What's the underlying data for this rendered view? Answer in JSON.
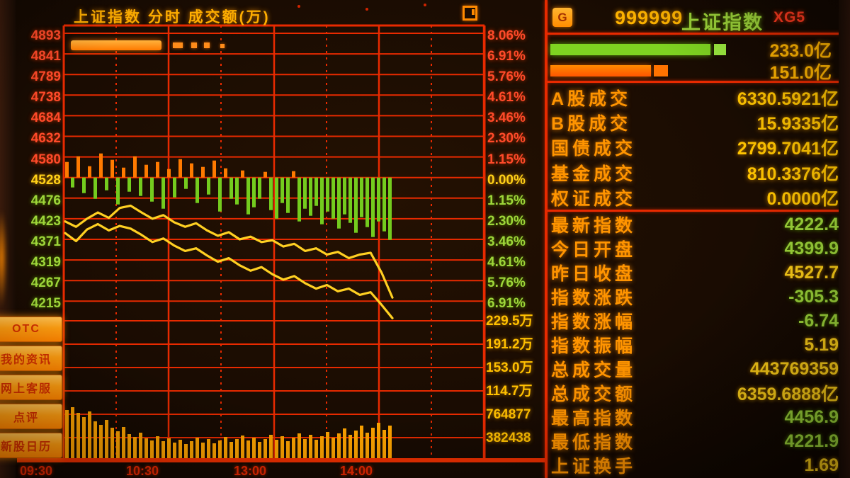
{
  "chart_panel": {
    "title": "上证指数 分时 成交额(万)"
  },
  "sidebar": {
    "items": [
      "OTC",
      "我的资讯",
      "网上客服",
      "点评",
      "新股日历"
    ]
  },
  "quote_panel": {
    "logo_glyph": "G",
    "stock_code": "999999",
    "stock_name": "上证指数",
    "tag": "XG5",
    "advance_bar_value": "233.0亿",
    "decline_bar_value": "151.0亿",
    "turnover_rows": [
      {
        "label": "A股成交",
        "value": "6330.5921",
        "unit": "亿"
      },
      {
        "label": "B股成交",
        "value": "15.9335",
        "unit": "亿"
      },
      {
        "label": "国债成交",
        "value": "2799.7041",
        "unit": "亿"
      },
      {
        "label": "基金成交",
        "value": "810.3376",
        "unit": "亿"
      },
      {
        "label": "权证成交",
        "value": "0.0000",
        "unit": "亿"
      }
    ],
    "index_rows": [
      {
        "label": "最新指数",
        "value": "4222.4",
        "color": "c-green"
      },
      {
        "label": "今日开盘",
        "value": "4399.9",
        "color": "c-green"
      },
      {
        "label": "昨日收盘",
        "value": "4527.7",
        "color": "c-yellow"
      },
      {
        "label": "指数涨跌",
        "value": "-305.3",
        "color": "c-green"
      },
      {
        "label": "指数涨幅",
        "value": "-6.74",
        "color": "c-green"
      },
      {
        "label": "指数振幅",
        "value": "5.19",
        "color": "c-yellow"
      },
      {
        "label": "总成交量",
        "value": "443769359",
        "color": "c-yellow"
      },
      {
        "label": "总成交额",
        "value": "6359.6888亿",
        "color": "c-yellow"
      },
      {
        "label": "最高指数",
        "value": "4456.9",
        "color": "c-green"
      },
      {
        "label": "最低指数",
        "value": "4221.9",
        "color": "c-green"
      },
      {
        "label": "上证换手",
        "value": "1.69",
        "color": "c-yellow"
      }
    ]
  },
  "chart_data": {
    "type": "line",
    "title": "上证指数 分时 成交额(万)",
    "prev_close_index": 4527.7,
    "price_ticks": [
      {
        "label": "4893",
        "color": "c-red"
      },
      {
        "label": "4841",
        "color": "c-red"
      },
      {
        "label": "4789",
        "color": "c-red"
      },
      {
        "label": "4738",
        "color": "c-red"
      },
      {
        "label": "4684",
        "color": "c-red"
      },
      {
        "label": "4632",
        "color": "c-red"
      },
      {
        "label": "4580",
        "color": "c-red"
      },
      {
        "label": "4528",
        "color": "c-yellow"
      },
      {
        "label": "4476",
        "color": "c-green"
      },
      {
        "label": "4423",
        "color": "c-green"
      },
      {
        "label": "4371",
        "color": "c-green"
      },
      {
        "label": "4319",
        "color": "c-green"
      },
      {
        "label": "4267",
        "color": "c-green"
      },
      {
        "label": "4215",
        "color": "c-green"
      }
    ],
    "pct_ticks": [
      {
        "label": "8.06%",
        "color": "c-red"
      },
      {
        "label": "6.91%",
        "color": "c-red"
      },
      {
        "label": "5.76%",
        "color": "c-red"
      },
      {
        "label": "4.61%",
        "color": "c-red"
      },
      {
        "label": "3.46%",
        "color": "c-red"
      },
      {
        "label": "2.30%",
        "color": "c-red"
      },
      {
        "label": "1.15%",
        "color": "c-red"
      },
      {
        "label": "0.00%",
        "color": "c-yellow"
      },
      {
        "label": "1.15%",
        "color": "c-green"
      },
      {
        "label": "2.30%",
        "color": "c-green"
      },
      {
        "label": "3.46%",
        "color": "c-green"
      },
      {
        "label": "4.61%",
        "color": "c-green"
      },
      {
        "label": "5.76%",
        "color": "c-green"
      },
      {
        "label": "6.91%",
        "color": "c-green"
      }
    ],
    "vol_ticks": [
      "229.5万",
      "191.2万",
      "153.0万",
      "114.7万",
      "764877",
      "382438"
    ],
    "time_ticks": [
      "09:30",
      "10:30",
      "13:00",
      "14:00"
    ],
    "series": [
      {
        "name": "index_pct_change",
        "values": [
          -2.45,
          -2.75,
          -2.3,
          -1.95,
          -2.25,
          -1.7,
          -1.57,
          -1.95,
          -2.3,
          -2.1,
          -2.5,
          -2.75,
          -2.55,
          -2.95,
          -3.25,
          -3.05,
          -3.45,
          -3.3,
          -3.6,
          -3.5,
          -3.85,
          -3.7,
          -4.1,
          -3.95,
          -4.3,
          -4.15,
          -4.5,
          -4.3,
          -4.2,
          -5.3,
          -6.7
        ]
      },
      {
        "name": "average_pct_change",
        "values": [
          -3.1,
          -3.55,
          -2.9,
          -2.6,
          -2.95,
          -2.7,
          -2.85,
          -3.2,
          -3.6,
          -3.4,
          -3.8,
          -4.1,
          -3.95,
          -4.35,
          -4.7,
          -4.5,
          -4.9,
          -5.2,
          -5.0,
          -5.4,
          -5.7,
          -5.5,
          -5.9,
          -6.2,
          -6.0,
          -6.35,
          -6.2,
          -6.55,
          -6.4,
          -7.1,
          -7.85
        ]
      }
    ],
    "minute_volume_strip": [
      22,
      -14,
      30,
      -22,
      16,
      -30,
      34,
      -18,
      25,
      -38,
      14,
      -20,
      30,
      -26,
      18,
      -34,
      22,
      -44,
      12,
      -28,
      26,
      -16,
      20,
      -36,
      15,
      -24,
      24,
      -48,
      13,
      -30,
      -38,
      10,
      -52,
      -42,
      -30,
      8,
      -46,
      -58,
      -36,
      -50,
      9,
      -62,
      -44,
      -54,
      -40,
      -66,
      -48,
      -58,
      -72,
      -52,
      -64,
      -78,
      -56,
      -70,
      -84,
      -62,
      -76,
      -88
    ],
    "volume_bars": [
      68,
      72,
      64,
      58,
      66,
      52,
      47,
      54,
      43,
      38,
      44,
      34,
      30,
      36,
      28,
      25,
      31,
      24,
      28,
      22,
      26,
      20,
      24,
      29,
      22,
      27,
      21,
      25,
      30,
      23,
      27,
      32,
      25,
      29,
      23,
      27,
      33,
      26,
      31,
      24,
      29,
      35,
      27,
      33,
      26,
      31,
      37,
      29,
      35,
      42,
      33,
      39,
      46,
      36,
      43,
      50,
      40,
      46
    ],
    "grid": true,
    "axis_colors": {
      "grid_red": "#e82a00",
      "line_yellow": "#ffd022",
      "up_orange": "#ff7a00",
      "down_green": "#74cc1e",
      "volume_orange": "#ffa400"
    }
  }
}
